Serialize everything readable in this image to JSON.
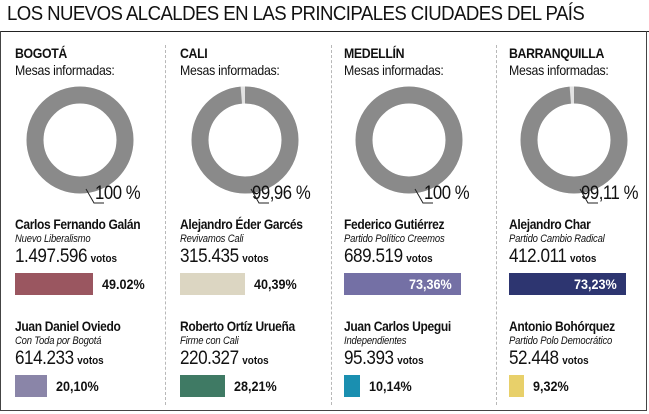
{
  "title": "LOS NUEVOS ALCALDES EN LAS PRINCIPALES CIUDADES DEL PAÍS",
  "vote_word": "votos",
  "chart_data": {
    "type": "pie",
    "title": "LOS NUEVOS ALCALDES EN LAS PRINCIPALES CIUDADES DEL PAÍS",
    "cities": [
      {
        "city": "BOGOTÁ",
        "mesas_label": "Mesas informadas:",
        "mesas_pct": 100,
        "mesas_text": "100 %",
        "candidates": [
          {
            "name": "Carlos Fernando Galán",
            "party": "Nuevo Liberalismo",
            "votes": 1497596,
            "votes_text": "1.497.596",
            "pct": 49.02,
            "pct_text": "49.02%",
            "color": "#9a5660"
          },
          {
            "name": "Juan Daniel Oviedo",
            "party": "Con Toda por Bogotá",
            "votes": 614233,
            "votes_text": "614.233",
            "pct": 20.1,
            "pct_text": "20,10%",
            "color": "#8a85a8"
          }
        ]
      },
      {
        "city": "CALI",
        "mesas_label": "Mesas informadas:",
        "mesas_pct": 99.96,
        "mesas_text": "99,96 %",
        "candidates": [
          {
            "name": "Alejandro Éder Garcés",
            "party": "Revivamos Cali",
            "votes": 315435,
            "votes_text": "315.435",
            "pct": 40.39,
            "pct_text": "40,39%",
            "color": "#dcd6c2"
          },
          {
            "name": "Roberto Ortíz Urueña",
            "party": "Firme con Cali",
            "votes": 220327,
            "votes_text": "220.327",
            "pct": 28.21,
            "pct_text": "28,21%",
            "color": "#3f7a64"
          }
        ]
      },
      {
        "city": "MEDELLÍN",
        "mesas_label": "Mesas informadas:",
        "mesas_pct": 100,
        "mesas_text": "100 %",
        "candidates": [
          {
            "name": "Federico Gutiérrez",
            "party": "Partido Político Creemos",
            "votes": 689519,
            "votes_text": "689.519",
            "pct": 73.36,
            "pct_text": "73,36%",
            "color": "#7470a5"
          },
          {
            "name": "Juan Carlos Upegui",
            "party": "Independientes",
            "votes": 95393,
            "votes_text": "95.393",
            "pct": 10.14,
            "pct_text": "10,14%",
            "color": "#1a8fb0"
          }
        ]
      },
      {
        "city": "BARRANQUILLA",
        "mesas_label": "Mesas informadas:",
        "mesas_pct": 99.11,
        "mesas_text": "99,11 %",
        "candidates": [
          {
            "name": "Alejandro Char",
            "party": "Partido Cambio Radical",
            "votes": 412011,
            "votes_text": "412.011",
            "pct": 73.23,
            "pct_text": "73,23%",
            "color": "#2d3570"
          },
          {
            "name": "Antonio Bohórquez",
            "party": "Partido Polo Democrático",
            "votes": 52448,
            "votes_text": "52.448",
            "pct": 9.32,
            "pct_text": "9,32%",
            "color": "#e8d06a"
          }
        ]
      }
    ]
  }
}
